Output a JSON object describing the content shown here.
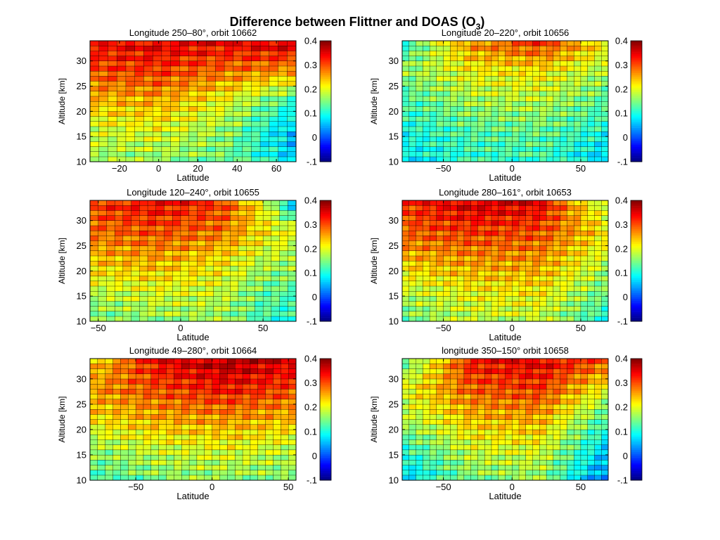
{
  "figure": {
    "title": "Difference between Flittner and DOAS (O",
    "title_subscript": "3",
    "title_suffix": ")"
  },
  "chart_data": [
    {
      "type": "heatmap",
      "title": "Longitude 250–80°, orbit 10662",
      "xlabel": "Latitude",
      "ylabel": "Altitude [km]",
      "xlim": [
        -35,
        70
      ],
      "ylim": [
        10,
        34
      ],
      "xticks": [
        -20,
        0,
        20,
        40,
        60
      ],
      "yticks": [
        10,
        15,
        20,
        25,
        30
      ],
      "ncols": 23,
      "nrows": 24,
      "colorbar": {
        "min": -0.1,
        "max": 0.4,
        "ticks": [
          -0.1,
          0,
          0.1,
          0.2,
          0.3,
          0.4
        ]
      },
      "value_grid": {
        "lat_values": [
          -35,
          0,
          35,
          70
        ],
        "alt_values": [
          10,
          16,
          22,
          28,
          34
        ],
        "z": [
          [
            0.16,
            0.16,
            0.14,
            0.07
          ],
          [
            0.19,
            0.2,
            0.16,
            0.05
          ],
          [
            0.24,
            0.25,
            0.2,
            0.11
          ],
          [
            0.3,
            0.31,
            0.28,
            0.26
          ],
          [
            0.33,
            0.35,
            0.34,
            0.37
          ]
        ]
      }
    },
    {
      "type": "heatmap",
      "title": "Longitude 20–220°, orbit 10656",
      "xlabel": "Latitude",
      "ylabel": "Altitude [km]",
      "xlim": [
        -80,
        70
      ],
      "ylim": [
        10,
        34
      ],
      "xticks": [
        -50,
        0,
        50
      ],
      "yticks": [
        10,
        15,
        20,
        25,
        30
      ],
      "ncols": 30,
      "nrows": 24,
      "colorbar": {
        "min": -0.1,
        "max": 0.4,
        "ticks": [
          -0.1,
          0,
          0.1,
          0.2,
          0.3,
          0.4
        ]
      },
      "value_grid": {
        "lat_values": [
          -80,
          -30,
          20,
          70
        ],
        "alt_values": [
          10,
          16,
          22,
          28,
          34
        ],
        "z": [
          [
            0.08,
            0.11,
            0.12,
            0.06
          ],
          [
            0.1,
            0.13,
            0.14,
            0.1
          ],
          [
            0.12,
            0.17,
            0.18,
            0.13
          ],
          [
            0.16,
            0.21,
            0.22,
            0.17
          ],
          [
            0.1,
            0.27,
            0.32,
            0.22
          ]
        ]
      }
    },
    {
      "type": "heatmap",
      "title": "Longitude 120–240°, orbit 10655",
      "xlabel": "Latitude",
      "ylabel": "Altitude [km]",
      "xlim": [
        -55,
        70
      ],
      "ylim": [
        10,
        34
      ],
      "xticks": [
        -50,
        0,
        50
      ],
      "yticks": [
        10,
        15,
        20,
        25,
        30
      ],
      "ncols": 25,
      "nrows": 24,
      "colorbar": {
        "min": -0.1,
        "max": 0.4,
        "ticks": [
          -0.1,
          0,
          0.1,
          0.2,
          0.3,
          0.4
        ]
      },
      "value_grid": {
        "lat_values": [
          -55,
          -15,
          25,
          50,
          70
        ],
        "alt_values": [
          10,
          16,
          22,
          28,
          34
        ],
        "z": [
          [
            0.14,
            0.16,
            0.16,
            0.12,
            0.1
          ],
          [
            0.18,
            0.2,
            0.19,
            0.14,
            0.13
          ],
          [
            0.24,
            0.25,
            0.22,
            0.18,
            0.17
          ],
          [
            0.28,
            0.3,
            0.28,
            0.22,
            0.2
          ],
          [
            0.31,
            0.34,
            0.31,
            0.21,
            0.03
          ]
        ]
      }
    },
    {
      "type": "heatmap",
      "title": "Longitude 280–161°, orbit 10653",
      "xlabel": "Latitude",
      "ylabel": "Altitude [km]",
      "xlim": [
        -80,
        70
      ],
      "ylim": [
        10,
        34
      ],
      "xticks": [
        -50,
        0,
        50
      ],
      "yticks": [
        10,
        15,
        20,
        25,
        30
      ],
      "ncols": 30,
      "nrows": 24,
      "colorbar": {
        "min": -0.1,
        "max": 0.4,
        "ticks": [
          -0.1,
          0,
          0.1,
          0.2,
          0.3,
          0.4
        ]
      },
      "value_grid": {
        "lat_values": [
          -80,
          -30,
          20,
          70
        ],
        "alt_values": [
          10,
          16,
          22,
          28,
          34
        ],
        "z": [
          [
            0.14,
            0.18,
            0.18,
            0.1
          ],
          [
            0.18,
            0.21,
            0.22,
            0.14
          ],
          [
            0.24,
            0.26,
            0.26,
            0.18
          ],
          [
            0.29,
            0.31,
            0.3,
            0.22
          ],
          [
            0.31,
            0.36,
            0.35,
            0.16
          ]
        ]
      }
    },
    {
      "type": "heatmap",
      "title": "Longitude 49–280°, orbit 10664",
      "xlabel": "Latitude",
      "ylabel": "Altitude [km]",
      "xlim": [
        -80,
        55
      ],
      "ylim": [
        10,
        34
      ],
      "xticks": [
        -50,
        0,
        50
      ],
      "yticks": [
        10,
        15,
        20,
        25,
        30
      ],
      "ncols": 27,
      "nrows": 24,
      "colorbar": {
        "min": -0.1,
        "max": 0.4,
        "ticks": [
          -0.1,
          0,
          0.1,
          0.2,
          0.3,
          0.4
        ]
      },
      "value_grid": {
        "lat_values": [
          -80,
          -35,
          10,
          55
        ],
        "alt_values": [
          10,
          16,
          22,
          28,
          34
        ],
        "z": [
          [
            0.12,
            0.15,
            0.16,
            0.15
          ],
          [
            0.16,
            0.19,
            0.2,
            0.18
          ],
          [
            0.22,
            0.25,
            0.26,
            0.24
          ],
          [
            0.26,
            0.3,
            0.33,
            0.3
          ],
          [
            0.22,
            0.34,
            0.38,
            0.35
          ]
        ]
      }
    },
    {
      "type": "heatmap",
      "title": "longitude 350–150° orbit 10658",
      "xlabel": "Latitude",
      "ylabel": "Altitude [km]",
      "xlim": [
        -80,
        70
      ],
      "ylim": [
        10,
        34
      ],
      "xticks": [
        -50,
        0,
        50
      ],
      "yticks": [
        10,
        15,
        20,
        25,
        30
      ],
      "ncols": 30,
      "nrows": 24,
      "colorbar": {
        "min": -0.1,
        "max": 0.4,
        "ticks": [
          -0.1,
          0,
          0.1,
          0.2,
          0.3,
          0.4
        ]
      },
      "value_grid": {
        "lat_values": [
          -80,
          -30,
          20,
          70
        ],
        "alt_values": [
          10,
          16,
          22,
          28,
          34
        ],
        "z": [
          [
            0.06,
            0.15,
            0.16,
            0.02
          ],
          [
            0.11,
            0.19,
            0.2,
            0.06
          ],
          [
            0.17,
            0.24,
            0.25,
            0.12
          ],
          [
            0.2,
            0.29,
            0.31,
            0.2
          ],
          [
            0.12,
            0.33,
            0.35,
            0.3
          ]
        ]
      }
    }
  ]
}
